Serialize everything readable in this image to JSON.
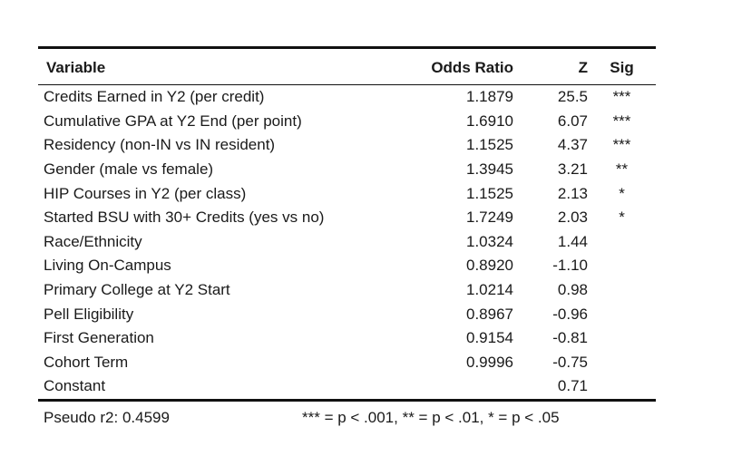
{
  "table": {
    "headers": {
      "variable": "Variable",
      "odds_ratio": "Odds Ratio",
      "z": "Z",
      "sig": "Sig"
    },
    "rows": [
      {
        "variable": "Credits Earned in Y2 (per credit)",
        "odds_ratio": "1.1879",
        "z": "25.5",
        "sig": "***"
      },
      {
        "variable": "Cumulative GPA at Y2 End (per point)",
        "odds_ratio": "1.6910",
        "z": "6.07",
        "sig": "***"
      },
      {
        "variable": "Residency (non-IN vs IN resident)",
        "odds_ratio": "1.1525",
        "z": "4.37",
        "sig": "***"
      },
      {
        "variable": "Gender (male vs female)",
        "odds_ratio": "1.3945",
        "z": "3.21",
        "sig": "**"
      },
      {
        "variable": "HIP Courses in Y2 (per class)",
        "odds_ratio": "1.1525",
        "z": "2.13",
        "sig": "*"
      },
      {
        "variable": "Started BSU with 30+ Credits (yes vs no)",
        "odds_ratio": "1.7249",
        "z": "2.03",
        "sig": "*"
      },
      {
        "variable": "Race/Ethnicity",
        "odds_ratio": "1.0324",
        "z": "1.44",
        "sig": ""
      },
      {
        "variable": "Living On-Campus",
        "odds_ratio": "0.8920",
        "z": "-1.10",
        "sig": ""
      },
      {
        "variable": "Primary College at Y2 Start",
        "odds_ratio": "1.0214",
        "z": "0.98",
        "sig": ""
      },
      {
        "variable": "Pell Eligibility",
        "odds_ratio": "0.8967",
        "z": "-0.96",
        "sig": ""
      },
      {
        "variable": "First Generation",
        "odds_ratio": "0.9154",
        "z": "-0.81",
        "sig": ""
      },
      {
        "variable": "Cohort Term",
        "odds_ratio": "0.9996",
        "z": "-0.75",
        "sig": ""
      },
      {
        "variable": "Constant",
        "odds_ratio": "",
        "z": "0.71",
        "sig": ""
      }
    ],
    "footer": {
      "pseudo_r2": "Pseudo r2: 0.4599",
      "legend": "*** = p < .001, ** = p < .01, * = p < .05"
    }
  }
}
